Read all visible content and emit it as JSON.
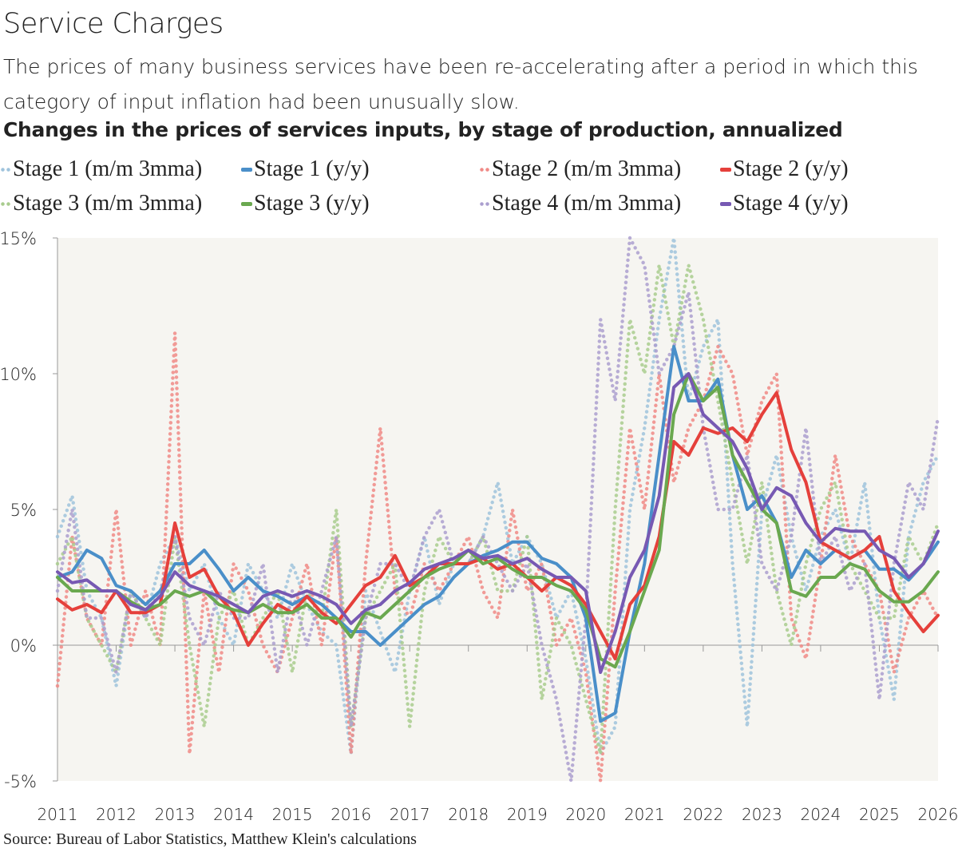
{
  "title": "Service Charges",
  "subtitle": "The prices of many business services have been re-accelerating after a period in which this category of input inflation had been unusually slow.",
  "chart_data": {
    "type": "line",
    "title": "Changes in the prices of services inputs, by stage of production, annualized",
    "xlabel": "",
    "ylabel": "",
    "x_start": 2011,
    "x_step_years": 0.25,
    "xlim": [
      2011,
      2026
    ],
    "ylim": [
      -5,
      15
    ],
    "x_ticks": [
      "2011",
      "2012",
      "2013",
      "2014",
      "2015",
      "2016",
      "2017",
      "2018",
      "2019",
      "2020",
      "2021",
      "2022",
      "2023",
      "2024",
      "2025",
      "2026"
    ],
    "y_ticks": [
      {
        "v": 15,
        "label": "15%"
      },
      {
        "v": 10,
        "label": "10%"
      },
      {
        "v": 5,
        "label": "5%"
      },
      {
        "v": 0,
        "label": "0%"
      },
      {
        "v": -5,
        "label": "-5%"
      }
    ],
    "grid": false,
    "legend_placement": "top",
    "plot_background": "#f6f5f1",
    "series": [
      {
        "name": "Stage 1 (m/m 3mma)",
        "style": "dotted",
        "color": "#9fc3dc",
        "values": [
          4,
          5.5,
          2,
          1,
          -1.5,
          2,
          1,
          3,
          4,
          2,
          3,
          1,
          0,
          3,
          2,
          1,
          3,
          1.5,
          0.5,
          0,
          -4,
          2,
          0.5,
          -1,
          2,
          4,
          1.5,
          3,
          3,
          4,
          6,
          3,
          4,
          3,
          1,
          2,
          -0.5,
          -4,
          -3,
          5,
          8,
          12,
          15,
          9,
          11,
          12,
          3,
          -3,
          5,
          7,
          4,
          2,
          4,
          5,
          3,
          6,
          1,
          -2,
          4,
          6,
          7
        ]
      },
      {
        "name": "Stage 1 (y/y)",
        "style": "solid",
        "color": "#4a8fc9",
        "values": [
          2.5,
          2.7,
          3.5,
          3.2,
          2.2,
          2.0,
          1.5,
          2.0,
          3.0,
          3.0,
          3.5,
          2.8,
          2.0,
          2.5,
          2.0,
          1.8,
          1.5,
          1.8,
          1.5,
          1.0,
          0.5,
          0.5,
          0.0,
          0.5,
          1.0,
          1.5,
          1.8,
          2.5,
          3.0,
          3.3,
          3.5,
          3.8,
          3.8,
          3.2,
          3.0,
          2.5,
          1.0,
          -2.8,
          -2.5,
          0.5,
          3.0,
          7.0,
          11.0,
          9.0,
          9.0,
          9.8,
          7.0,
          5.0,
          5.5,
          4.5,
          2.5,
          3.5,
          3.0,
          3.5,
          3.2,
          3.5,
          2.8,
          2.8,
          2.4,
          3.0,
          3.8
        ]
      },
      {
        "name": "Stage 2 (m/m 3mma)",
        "style": "dotted",
        "color": "#f08a86",
        "values": [
          -1.5,
          4,
          1,
          0,
          5,
          0,
          2,
          0,
          11.5,
          -4,
          2,
          -1,
          3,
          2,
          0,
          -1,
          1,
          3,
          0,
          4,
          -4,
          3,
          8,
          2,
          1,
          3,
          2,
          3,
          4,
          2,
          1,
          5,
          2,
          3,
          0,
          1,
          -1,
          -5,
          2,
          8,
          5,
          10,
          6,
          8,
          9,
          11,
          10,
          7,
          9,
          10,
          1,
          -0.5,
          3,
          7,
          4,
          3,
          2,
          -1,
          1,
          2,
          1
        ]
      },
      {
        "name": "Stage 2 (y/y)",
        "style": "solid",
        "color": "#e5403b",
        "values": [
          1.7,
          1.3,
          1.5,
          1.2,
          2.0,
          1.2,
          1.2,
          1.5,
          4.5,
          2.5,
          2.8,
          1.8,
          1.2,
          0.0,
          0.8,
          1.5,
          1.2,
          1.8,
          1.2,
          0.8,
          1.5,
          2.2,
          2.5,
          3.3,
          2.2,
          2.5,
          3.0,
          3.0,
          3.0,
          3.2,
          2.8,
          3.0,
          2.5,
          2.0,
          2.5,
          2.2,
          1.5,
          0.5,
          -0.5,
          1.5,
          2.2,
          4.0,
          7.5,
          7.0,
          8.0,
          7.8,
          8.0,
          7.5,
          8.5,
          9.3,
          7.2,
          6.0,
          3.8,
          3.5,
          3.2,
          3.5,
          4.0,
          2.0,
          1.2,
          0.5,
          1.1
        ]
      },
      {
        "name": "Stage 3 (m/m 3mma)",
        "style": "dotted",
        "color": "#a9cc8e",
        "values": [
          3,
          4,
          1,
          0,
          -1,
          2,
          1,
          0,
          4,
          0,
          -3,
          1,
          2,
          0,
          1,
          2,
          -1,
          2,
          1,
          5,
          -3,
          1,
          2,
          3,
          -3,
          2,
          4,
          3,
          3,
          4,
          2,
          2,
          4,
          -2,
          1,
          0,
          -2,
          -4,
          5,
          12,
          10,
          14,
          11,
          14,
          12,
          9,
          6,
          3,
          6,
          2,
          0,
          3,
          5,
          6,
          3,
          2,
          1,
          1,
          4,
          3,
          4.5
        ]
      },
      {
        "name": "Stage 3 (y/y)",
        "style": "solid",
        "color": "#6aa84f",
        "values": [
          2.5,
          2.0,
          2.0,
          2.0,
          2.0,
          1.6,
          1.3,
          1.5,
          2.0,
          1.8,
          2.0,
          1.5,
          1.3,
          1.2,
          1.5,
          1.2,
          1.2,
          1.5,
          1.0,
          1.0,
          0.3,
          1.2,
          1.0,
          1.5,
          2.0,
          2.5,
          2.8,
          3.0,
          3.5,
          3.0,
          3.2,
          2.8,
          2.5,
          2.5,
          2.2,
          2.0,
          1.3,
          -0.5,
          -0.8,
          0.5,
          2.0,
          3.5,
          8.5,
          10.0,
          9.0,
          9.5,
          7.0,
          6.0,
          5.0,
          4.5,
          2.0,
          1.8,
          2.5,
          2.5,
          3.0,
          2.8,
          2.0,
          1.6,
          1.6,
          2.0,
          2.7
        ]
      },
      {
        "name": "Stage 4 (m/m 3mma)",
        "style": "dotted",
        "color": "#ab9fcf",
        "values": [
          2,
          5,
          1,
          1,
          -1,
          2,
          1,
          2,
          4,
          1,
          0,
          2,
          1,
          1,
          3,
          -1,
          2,
          0,
          2,
          4,
          -3,
          1,
          3,
          3,
          2,
          4,
          5,
          3,
          3,
          4,
          3,
          2,
          3,
          0,
          -2,
          -5,
          1,
          12,
          9,
          15,
          14,
          10,
          11,
          13,
          8,
          5,
          5,
          7,
          3,
          2,
          4,
          8,
          3,
          4,
          2,
          3,
          -2,
          3,
          6,
          5,
          8.4
        ]
      },
      {
        "name": "Stage 4 (y/y)",
        "style": "solid",
        "color": "#7759b3",
        "values": [
          2.7,
          2.3,
          2.4,
          2.0,
          2.0,
          1.5,
          1.3,
          1.8,
          2.7,
          2.2,
          2.0,
          1.8,
          1.5,
          1.2,
          1.8,
          2.0,
          1.8,
          2.0,
          1.8,
          1.5,
          0.8,
          1.3,
          1.5,
          2.0,
          2.3,
          2.8,
          3.0,
          3.2,
          3.5,
          3.2,
          3.3,
          3.0,
          3.2,
          2.8,
          2.5,
          2.5,
          2.0,
          -1.0,
          0.5,
          2.5,
          3.5,
          5.5,
          9.5,
          10.0,
          8.5,
          8.0,
          7.5,
          6.5,
          5.0,
          5.8,
          5.5,
          4.5,
          3.8,
          4.3,
          4.2,
          4.2,
          3.5,
          3.2,
          2.5,
          3.0,
          4.2
        ]
      }
    ],
    "source": "Source: Bureau of Labor Statistics, Matthew Klein's calculations"
  }
}
